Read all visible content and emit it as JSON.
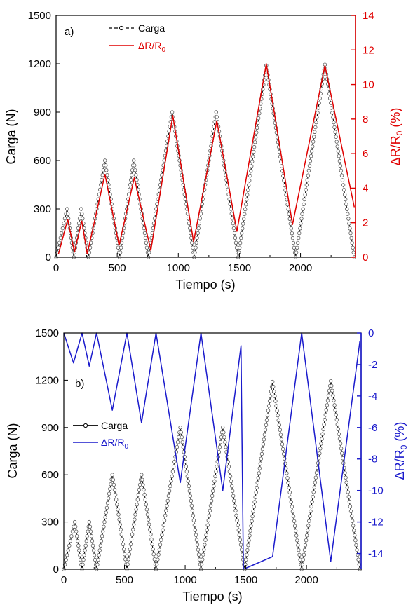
{
  "chart_data": [
    {
      "type": "line",
      "panel_label": "a)",
      "xlabel": "Tiempo (s)",
      "ylabel": "Carga (N)",
      "y2label_main": "ΔR/R",
      "y2label_sub": "0",
      "y2label_unit": " (%)",
      "xlim": [
        0,
        2450
      ],
      "ylim": [
        0,
        1500
      ],
      "y2lim": [
        0,
        14
      ],
      "xticks": [
        "0",
        "500",
        "1000",
        "1500",
        "2000"
      ],
      "yticks": [
        "0",
        "300",
        "600",
        "900",
        "1200",
        "1500"
      ],
      "y2ticks": [
        "0",
        "2",
        "4",
        "6",
        "8",
        "10",
        "12",
        "14"
      ],
      "accent_color": "#e00000",
      "legend": {
        "position": "top-left",
        "carga_label": "Carga",
        "delta_main": "ΔR/R",
        "delta_sub": "0"
      },
      "series": [
        {
          "name": "Carga",
          "axis": "left",
          "color": "#000000",
          "style": "dashed-markers",
          "x": [
            0,
            90,
            145,
            205,
            265,
            400,
            520,
            635,
            755,
            950,
            1130,
            1310,
            1490,
            1720,
            1960,
            2200,
            2440
          ],
          "y": [
            0,
            300,
            0,
            300,
            0,
            600,
            0,
            600,
            0,
            900,
            0,
            900,
            0,
            1190,
            0,
            1195,
            0
          ]
        },
        {
          "name": "ΔR/R0",
          "axis": "right",
          "color": "#e00000",
          "style": "solid",
          "x": [
            20,
            95,
            150,
            210,
            255,
            400,
            515,
            640,
            775,
            955,
            1125,
            1315,
            1480,
            1720,
            1935,
            2200,
            2440
          ],
          "y": [
            0.2,
            2.2,
            0.3,
            2.1,
            0.2,
            4.8,
            0.7,
            4.6,
            0.4,
            8.2,
            0.9,
            7.9,
            1.5,
            11.2,
            1.9,
            11.1,
            2.9
          ]
        }
      ]
    },
    {
      "type": "line",
      "panel_label": "b)",
      "xlabel": "Tiempo (s)",
      "ylabel": "Carga (N)",
      "y2label_main": "ΔR/R",
      "y2label_sub": "0",
      "y2label_unit": " (%)",
      "xlim": [
        0,
        2450
      ],
      "ylim": [
        0,
        1500
      ],
      "y2lim": [
        -15,
        0
      ],
      "xticks": [
        "0",
        "500",
        "1000",
        "1500",
        "2000"
      ],
      "yticks": [
        "0",
        "300",
        "600",
        "900",
        "1200",
        "1500"
      ],
      "y2ticks": [
        "0",
        "-2",
        "-4",
        "-6",
        "-8",
        "-10",
        "-12",
        "-14"
      ],
      "accent_color": "#1a1acc",
      "legend": {
        "position": "middle-left",
        "carga_label": "Carga",
        "delta_main": "ΔR/R",
        "delta_sub": "0"
      },
      "series": [
        {
          "name": "Carga",
          "axis": "left",
          "color": "#000000",
          "style": "solid-markers",
          "x": [
            0,
            90,
            150,
            210,
            270,
            400,
            520,
            640,
            760,
            960,
            1130,
            1310,
            1490,
            1720,
            1960,
            2200,
            2440
          ],
          "y": [
            0,
            300,
            0,
            300,
            0,
            600,
            0,
            600,
            0,
            900,
            0,
            900,
            0,
            1190,
            0,
            1195,
            0
          ]
        },
        {
          "name": "ΔR/R0",
          "axis": "right",
          "color": "#1a1acc",
          "style": "solid",
          "x": [
            0,
            80,
            150,
            210,
            270,
            400,
            520,
            640,
            760,
            960,
            1130,
            1310,
            1460,
            1480,
            1720,
            1960,
            2200,
            2440
          ],
          "y": [
            0,
            -1.9,
            0,
            -2.1,
            0,
            -4.9,
            0,
            -5.7,
            0,
            -9.5,
            0,
            -10.0,
            -0.8,
            -15.0,
            -14.2,
            0,
            -14.5,
            -0.5
          ]
        }
      ]
    }
  ]
}
